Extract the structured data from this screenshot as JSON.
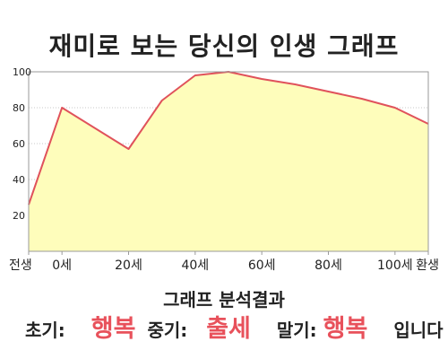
{
  "title": "재미로 보는 당신의 인생 그래프",
  "chart_data": {
    "type": "area",
    "title": "재미로 보는 당신의 인생 그래프",
    "xlabel": "",
    "ylabel": "",
    "xlim": [
      -10,
      110
    ],
    "ylim": [
      0,
      100
    ],
    "x_tick_labels": [
      {
        "x": -10,
        "label": "전생"
      },
      {
        "x": 0,
        "label": "0세"
      },
      {
        "x": 20,
        "label": "20세"
      },
      {
        "x": 40,
        "label": "40세"
      },
      {
        "x": 60,
        "label": "60세"
      },
      {
        "x": 80,
        "label": "80세"
      },
      {
        "x": 100,
        "label": "100세"
      },
      {
        "x": 110,
        "label": "환생"
      }
    ],
    "y_ticks": [
      20,
      40,
      60,
      80,
      100
    ],
    "grid": "horizontal dotted",
    "fill_color": "#fefdbb",
    "line_color": "#e0525b",
    "series": [
      {
        "x": [
          -10,
          0,
          20,
          30,
          40,
          50,
          60,
          70,
          80,
          90,
          100,
          110
        ],
        "values": [
          26,
          80,
          57,
          84,
          98,
          100,
          96,
          93,
          89,
          85,
          80,
          71
        ]
      }
    ]
  },
  "summary": {
    "heading": "그래프 분석결과",
    "early_label": "초기:",
    "early_value": "행복",
    "mid_label": "중기:",
    "mid_value": "출세",
    "late_label": "말기:",
    "late_value": "행복",
    "suffix": "입니다",
    "highlight_color": "#e8515b"
  }
}
